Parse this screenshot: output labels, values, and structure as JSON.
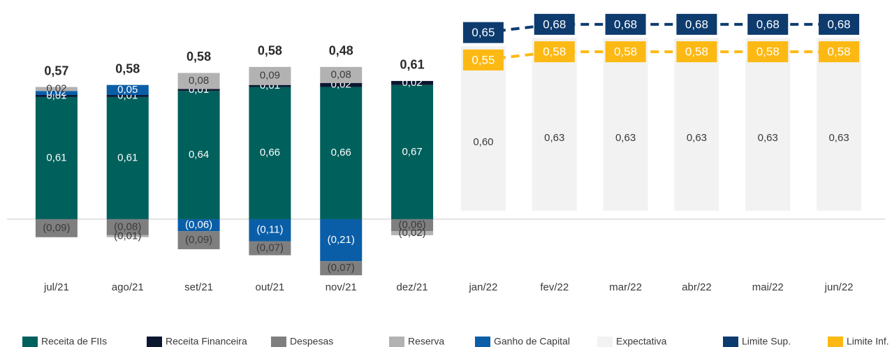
{
  "chart_data": {
    "type": "bar",
    "categories": [
      "jul/21",
      "ago/21",
      "set/21",
      "out/21",
      "nov/21",
      "dez/21",
      "jan/22",
      "fev/22",
      "mar/22",
      "abr/22",
      "mai/22",
      "jun/22"
    ],
    "ylim": [
      -0.3,
      1.0
    ],
    "y2lim": [
      -0.25,
      0.7
    ],
    "series": [
      {
        "name": "Receita de FIIs",
        "color": "#00605c",
        "values": [
          0.61,
          0.61,
          0.64,
          0.66,
          0.66,
          0.67,
          null,
          null,
          null,
          null,
          null,
          null
        ],
        "value_labels": [
          "0,61",
          "0,61",
          "0,64",
          "0,66",
          "0,66",
          "0,67",
          null,
          null,
          null,
          null,
          null,
          null
        ]
      },
      {
        "name": "Receita Financeira",
        "color": "#0b1730",
        "values": [
          0.01,
          0.01,
          0.01,
          0.01,
          0.02,
          0.02,
          null,
          null,
          null,
          null,
          null,
          null
        ],
        "value_labels": [
          "0,01",
          "0,01",
          "0,01",
          "0,01",
          "0,02",
          "0,02",
          null,
          null,
          null,
          null,
          null,
          null
        ]
      },
      {
        "name": "Despesas",
        "color": "#7f7f7f",
        "values": [
          -0.09,
          -0.08,
          -0.09,
          -0.07,
          -0.07,
          -0.06,
          null,
          null,
          null,
          null,
          null,
          null
        ],
        "value_labels": [
          "(0,09)",
          "(0,08)",
          "(0,09)",
          "(0,07)",
          "(0,07)",
          "(0,06)",
          null,
          null,
          null,
          null,
          null,
          null
        ]
      },
      {
        "name": "Reserva",
        "color": "#b2b2b2",
        "values": [
          0.02,
          -0.01,
          0.08,
          0.09,
          0.08,
          -0.02,
          null,
          null,
          null,
          null,
          null,
          null
        ],
        "value_labels": [
          "0,02",
          "(0,01)",
          "0,08",
          "0,09",
          "0,08",
          "(0,02)",
          null,
          null,
          null,
          null,
          null,
          null
        ]
      },
      {
        "name": "Ganho de Capital",
        "color": "#0a5ea8",
        "values": [
          0.02,
          0.05,
          -0.06,
          -0.11,
          -0.21,
          null,
          null,
          null,
          null,
          null,
          null,
          null
        ],
        "value_labels": [
          "0,02",
          "0,05",
          "(0,06)",
          "(0,11)",
          "(0,21)",
          null,
          null,
          null,
          null,
          null,
          null,
          null
        ]
      },
      {
        "name": "Expectativa",
        "color": "#f2f2f2",
        "axis": "y2",
        "values": [
          null,
          null,
          null,
          null,
          null,
          null,
          0.6,
          0.63,
          0.63,
          0.63,
          0.63,
          0.63
        ],
        "value_labels": [
          null,
          null,
          null,
          null,
          null,
          null,
          "0,60",
          "0,63",
          "0,63",
          "0,63",
          "0,63",
          "0,63"
        ]
      },
      {
        "name": "Limite Sup.",
        "color": "#0d3b6e",
        "axis": "y2",
        "type": "line",
        "values": [
          null,
          null,
          null,
          null,
          null,
          null,
          0.65,
          0.68,
          0.68,
          0.68,
          0.68,
          0.68
        ],
        "value_labels": [
          null,
          null,
          null,
          null,
          null,
          null,
          "0,65",
          "0,68",
          "0,68",
          "0,68",
          "0,68",
          "0,68"
        ]
      },
      {
        "name": "Limite Inf.",
        "color": "#fdb913",
        "axis": "y2",
        "type": "line",
        "values": [
          null,
          null,
          null,
          null,
          null,
          null,
          0.55,
          0.58,
          0.58,
          0.58,
          0.58,
          0.58
        ],
        "value_labels": [
          null,
          null,
          null,
          null,
          null,
          null,
          "0,55",
          "0,58",
          "0,58",
          "0,58",
          "0,58",
          "0,58"
        ]
      }
    ],
    "totals": [
      0.57,
      0.58,
      0.58,
      0.58,
      0.48,
      0.61
    ],
    "total_labels": [
      "0,57",
      "0,58",
      "0,58",
      "0,58",
      "0,48",
      "0,61"
    ]
  }
}
